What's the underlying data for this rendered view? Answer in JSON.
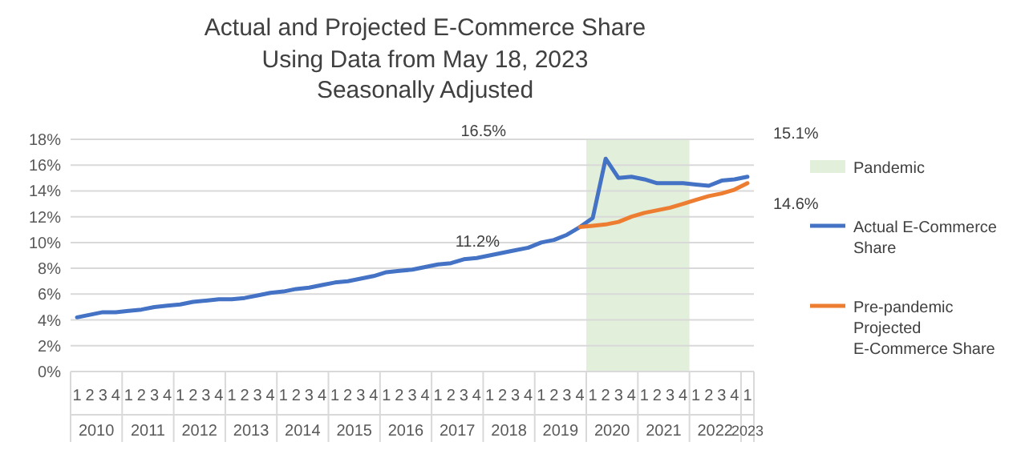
{
  "chart_data": {
    "type": "line",
    "title": "Actual and Projected E-Commerce Share",
    "subtitle": "Using Data from May 18, 2023\nSeasonally Adjusted",
    "categories": [
      "1",
      "2",
      "3",
      "4",
      "1",
      "2",
      "3",
      "4",
      "1",
      "2",
      "3",
      "4",
      "1",
      "2",
      "3",
      "4",
      "1",
      "2",
      "3",
      "4",
      "1",
      "2",
      "3",
      "4",
      "1",
      "2",
      "3",
      "4",
      "1",
      "2",
      "3",
      "4",
      "1",
      "2",
      "3",
      "4",
      "1",
      "2",
      "3",
      "4",
      "1",
      "2",
      "3",
      "4",
      "1",
      "2",
      "3",
      "4",
      "1",
      "2",
      "3",
      "4",
      "1"
    ],
    "series": [
      {
        "name": "Actual E-Commerce Share",
        "color": "#4472c4",
        "values": [
          4.2,
          4.4,
          4.6,
          4.6,
          4.7,
          4.8,
          5.0,
          5.1,
          5.2,
          5.4,
          5.5,
          5.6,
          5.6,
          5.7,
          5.9,
          6.1,
          6.2,
          6.4,
          6.5,
          6.7,
          6.9,
          7.0,
          7.2,
          7.4,
          7.7,
          7.8,
          7.9,
          8.1,
          8.3,
          8.4,
          8.7,
          8.8,
          9.0,
          9.2,
          9.4,
          9.6,
          10.0,
          10.2,
          10.6,
          11.2,
          11.9,
          16.5,
          15.0,
          15.1,
          14.9,
          14.6,
          14.6,
          14.6,
          14.5,
          14.4,
          14.8,
          14.9,
          15.1
        ]
      },
      {
        "name": "Pre-pandemic Projected E-Commerce Share",
        "color": "#ed7d31",
        "values": [
          null,
          null,
          null,
          null,
          null,
          null,
          null,
          null,
          null,
          null,
          null,
          null,
          null,
          null,
          null,
          null,
          null,
          null,
          null,
          null,
          null,
          null,
          null,
          null,
          null,
          null,
          null,
          null,
          null,
          null,
          null,
          null,
          null,
          null,
          null,
          null,
          null,
          null,
          null,
          11.2,
          11.3,
          11.4,
          11.6,
          12.0,
          12.3,
          12.5,
          12.7,
          13.0,
          13.3,
          13.6,
          13.8,
          14.1,
          14.6
        ]
      }
    ],
    "ylim": [
      0,
      18
    ],
    "yticks": [
      {
        "value": 0,
        "label": "0%"
      },
      {
        "value": 2,
        "label": "2%"
      },
      {
        "value": 4,
        "label": "4%"
      },
      {
        "value": 6,
        "label": "6%"
      },
      {
        "value": 8,
        "label": "8%"
      },
      {
        "value": 10,
        "label": "10%"
      },
      {
        "value": 12,
        "label": "12%"
      },
      {
        "value": 14,
        "label": "14%"
      },
      {
        "value": 16,
        "label": "16%"
      },
      {
        "value": 18,
        "label": "18%"
      }
    ],
    "annotations": [
      "16.5%",
      "15.1%",
      "14.6%",
      "11.2%",
      "Pandemic",
      "2010",
      "2011",
      "2012",
      "2013",
      "2014",
      "2015",
      "2016",
      "2017",
      "2018",
      "2019",
      "2020",
      "2021",
      "2022",
      "2023"
    ],
    "grid": "y",
    "legend": "right",
    "marker": "none",
    "line_style": "solid"
  }
}
